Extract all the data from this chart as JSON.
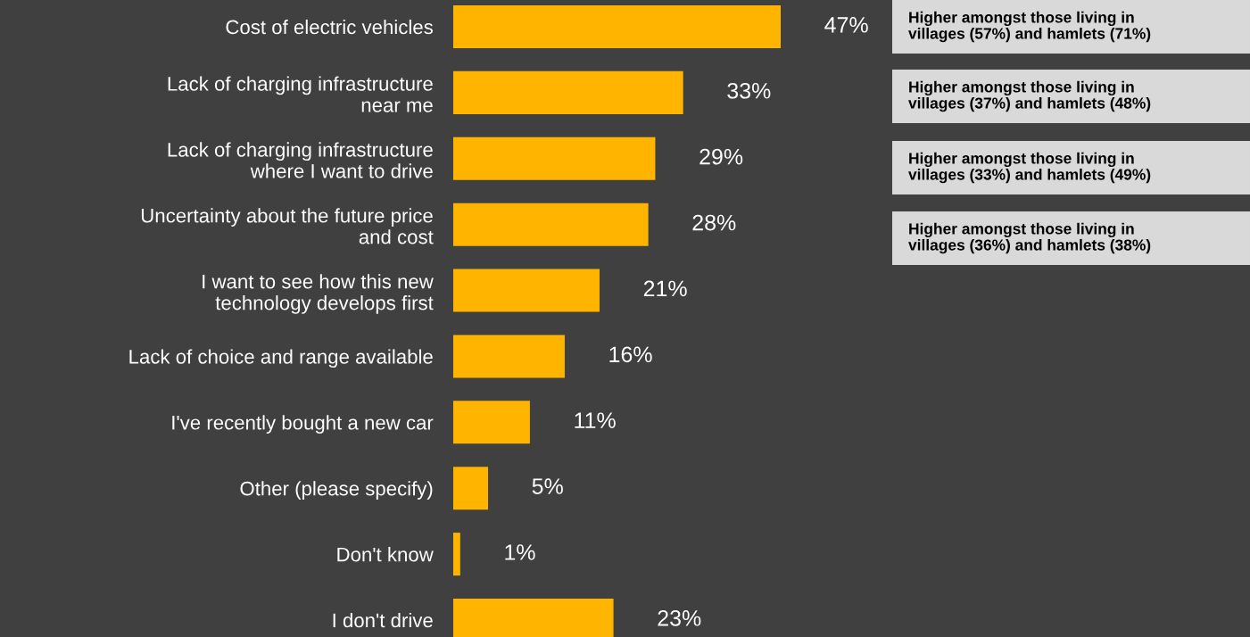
{
  "chart_data": {
    "type": "bar",
    "orientation": "horizontal",
    "categories": [
      "Cost of electric vehicles",
      "Lack of charging infrastructure\nnear me",
      "Lack of charging infrastructure\nwhere I want to drive",
      "Uncertainty about the future price\nand cost",
      "I want to see how this new\ntechnology develops first",
      "Lack of choice and range available",
      "I've recently bought a new car",
      "Other (please specify)",
      "Don't know",
      "I don't drive"
    ],
    "values": [
      47,
      33,
      29,
      28,
      21,
      16,
      11,
      5,
      1,
      23
    ],
    "value_labels": [
      "47%",
      "33%",
      "29%",
      "28%",
      "21%",
      "16%",
      "11%",
      "5%",
      "1%",
      "23%"
    ],
    "color": "#ffb400",
    "annotations": [
      "Higher amongst those living in\nvillages (57%) and hamlets (71%)",
      "Higher amongst those living in\nvillages (37%) and hamlets (48%)",
      "Higher amongst those living in\nvillages (33%) and hamlets (49%)",
      "Higher amongst those living in\nvillages (36%) and hamlets (38%)"
    ],
    "grid": false,
    "legend": false
  }
}
